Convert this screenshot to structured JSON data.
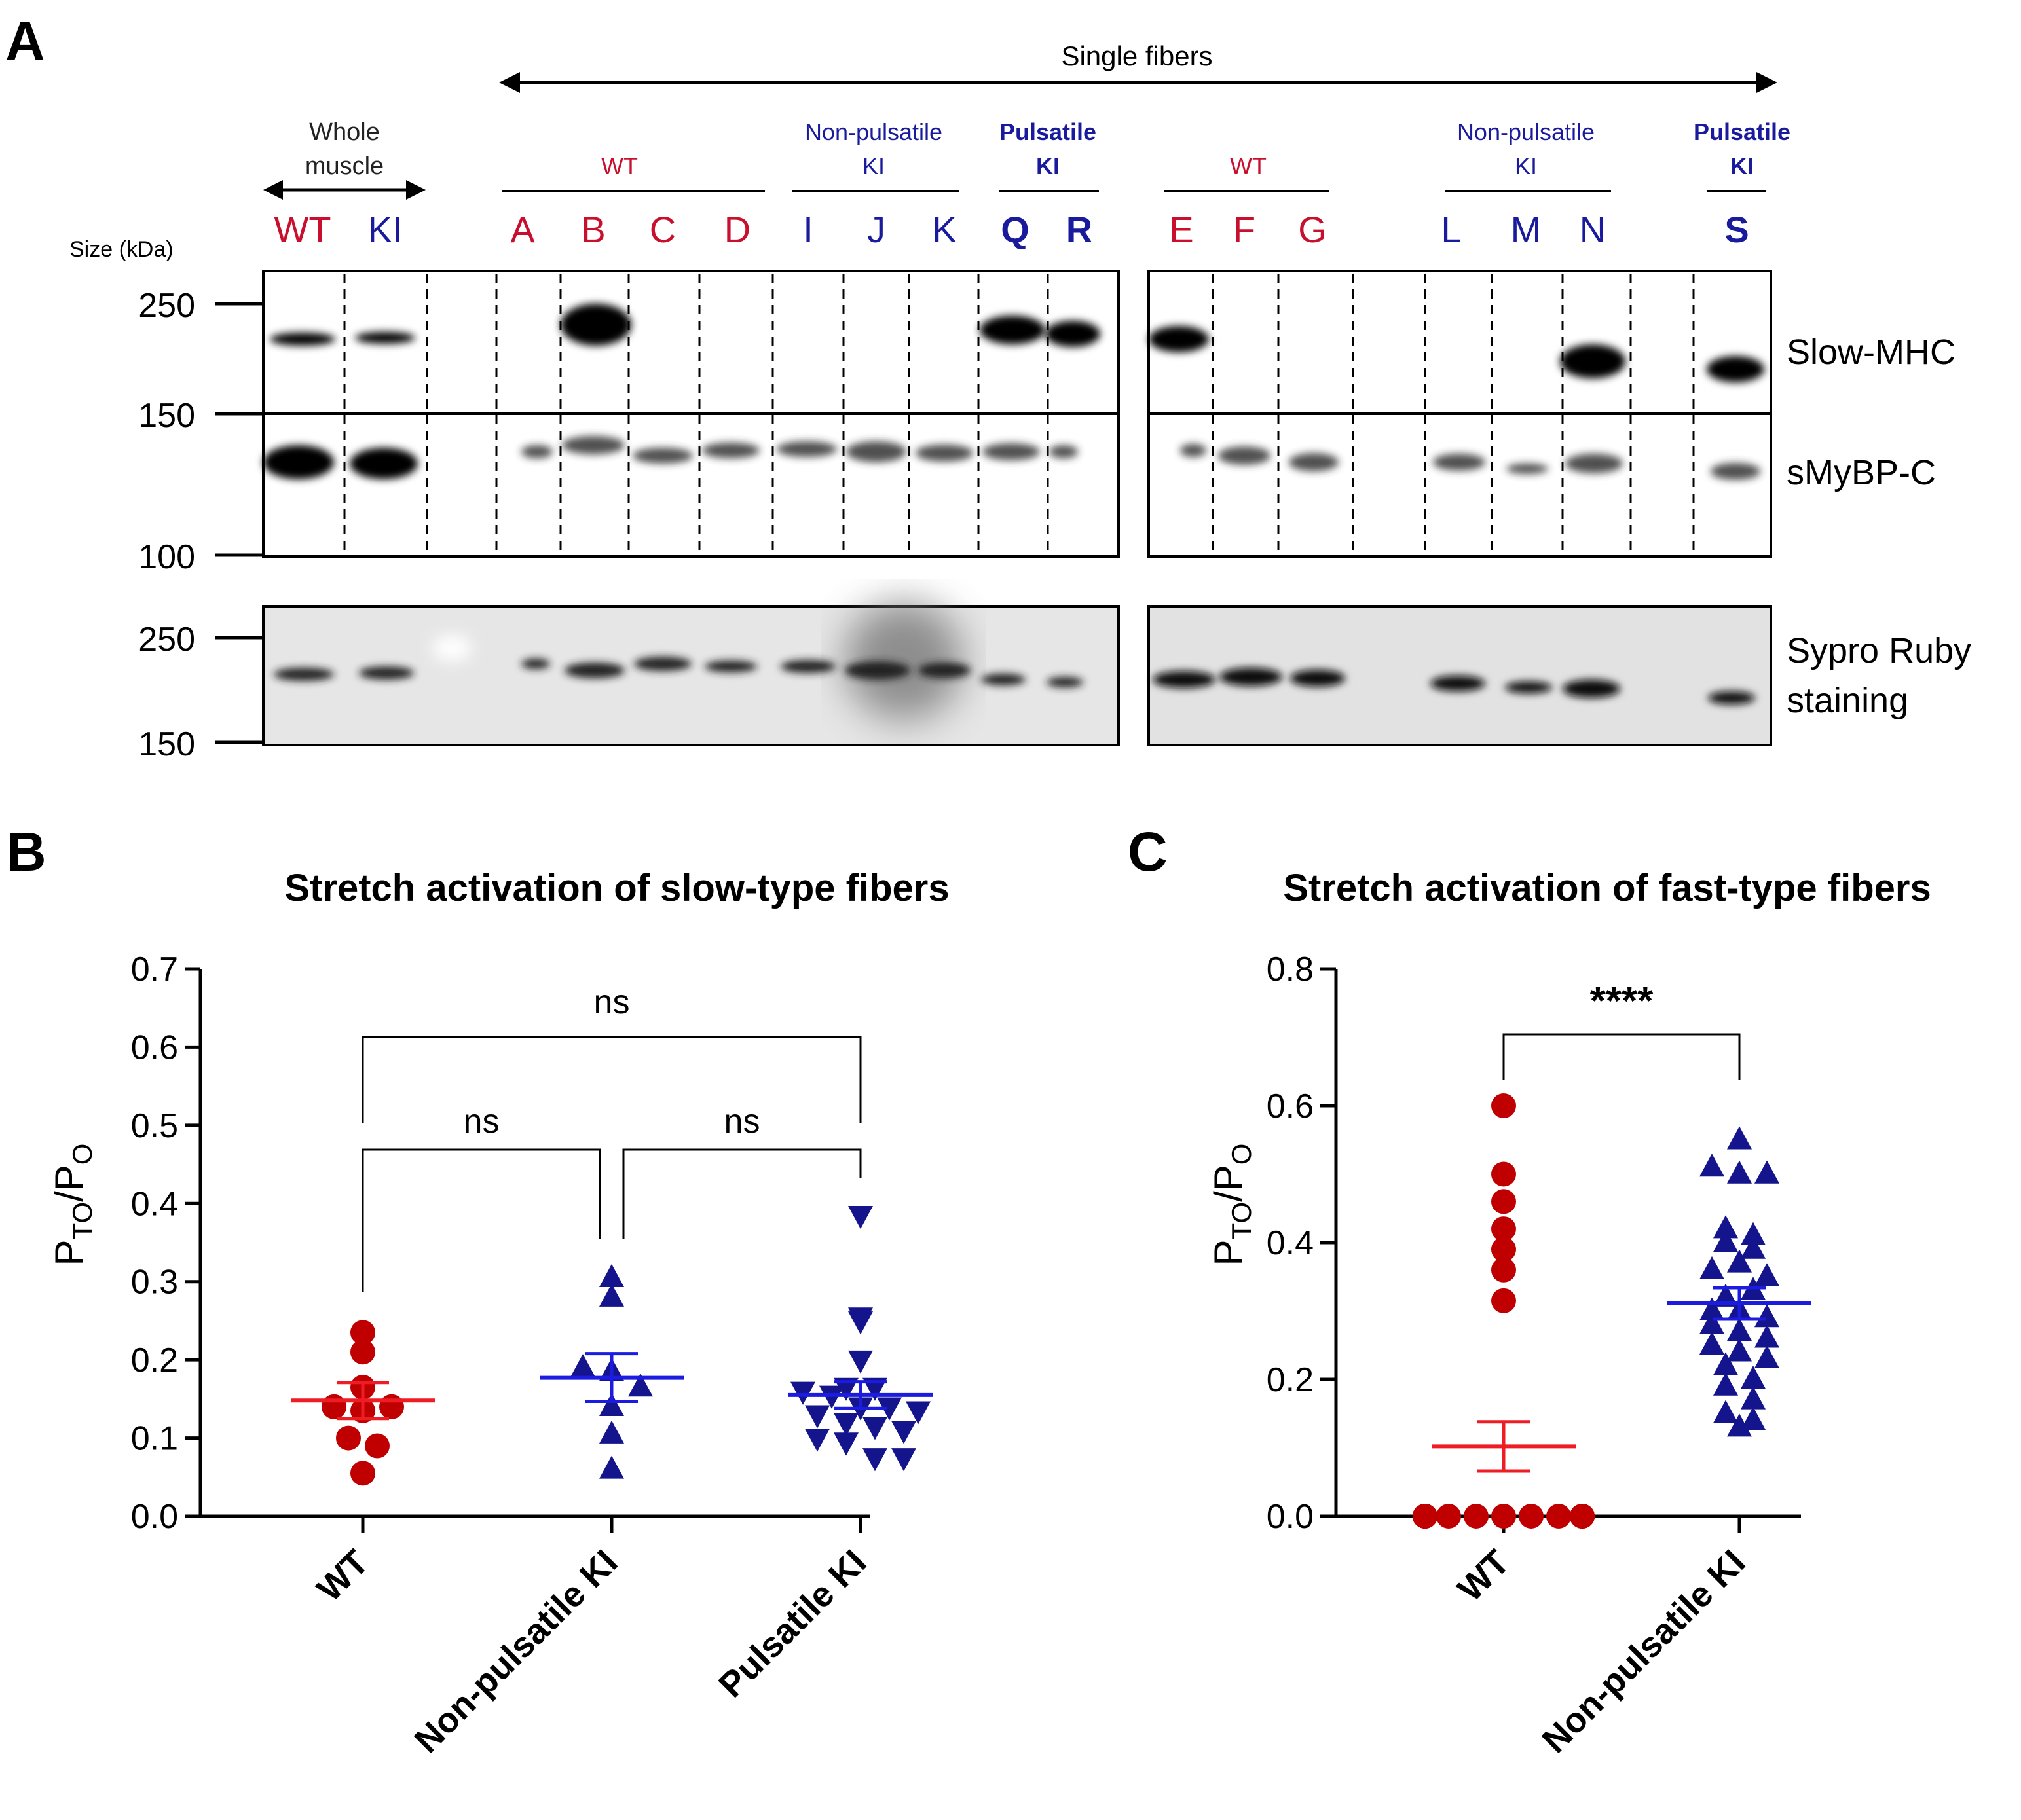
{
  "panel_letters": {
    "a": "A",
    "b": "B",
    "c": "C"
  },
  "colors": {
    "wt": "#c8102e",
    "ki": "#1a1a9c",
    "mean_wt": "#ee1c25",
    "mean_ki": "#1c1ce0",
    "marker_wt": "#c00000",
    "marker_ki": "#14148c"
  },
  "blot": {
    "single_fibers_label": "Single fibers",
    "whole_muscle_label_1": "Whole",
    "whole_muscle_label_2": "muscle",
    "size_label": "Size (kDa)",
    "group_left_wt": "WT",
    "group_left_np_1": "Non-pulsatile",
    "group_left_np_2": "KI",
    "group_left_p_1": "Pulsatile",
    "group_left_p_2": "KI",
    "group_right_wt": "WT",
    "group_right_np_1": "Non-pulsatile",
    "group_right_np_2": "KI",
    "group_right_p_1": "Pulsatile",
    "group_right_p_2": "KI",
    "lanes_left": [
      {
        "label": "WT",
        "color": "red",
        "bold": false
      },
      {
        "label": "KI",
        "color": "blue",
        "bold": false
      },
      {
        "label": "A",
        "color": "red",
        "bold": false
      },
      {
        "label": "B",
        "color": "red",
        "bold": false
      },
      {
        "label": "C",
        "color": "red",
        "bold": false
      },
      {
        "label": "D",
        "color": "red",
        "bold": false
      },
      {
        "label": "I",
        "color": "blue",
        "bold": false
      },
      {
        "label": "J",
        "color": "blue",
        "bold": false
      },
      {
        "label": "K",
        "color": "blue",
        "bold": false
      },
      {
        "label": "Q",
        "color": "blue",
        "bold": true
      },
      {
        "label": "R",
        "color": "blue",
        "bold": true
      }
    ],
    "lanes_right": [
      {
        "label": "E",
        "color": "red",
        "bold": false
      },
      {
        "label": "F",
        "color": "red",
        "bold": false
      },
      {
        "label": "G",
        "color": "red",
        "bold": false
      },
      {
        "label": "L",
        "color": "blue",
        "bold": false
      },
      {
        "label": "M",
        "color": "blue",
        "bold": false
      },
      {
        "label": "N",
        "color": "blue",
        "bold": false
      },
      {
        "label": "S",
        "color": "blue",
        "bold": true
      }
    ],
    "markers_top": [
      "250",
      "150",
      "100"
    ],
    "markers_bottom": [
      "250",
      "150"
    ],
    "band_labels": {
      "slow_mhc": "Slow-MHC",
      "smybpc": "sMyBP-C",
      "sypro_1": "Sypro Ruby",
      "sypro_2": "staining"
    }
  },
  "chart_data": [
    {
      "type": "scatter",
      "panel": "B",
      "title": "Stretch activation of slow-type fibers",
      "ylabel_main": "P",
      "ylabel_sub1": "TO",
      "ylabel_mid": "/P",
      "ylabel_sub2": "O",
      "ylim": [
        0,
        0.7
      ],
      "yticks": [
        "0.0",
        "0.1",
        "0.2",
        "0.3",
        "0.4",
        "0.5",
        "0.6",
        "0.7"
      ],
      "categories": [
        "WT",
        "Non-pulsatile KI",
        "Pulsatile KI"
      ],
      "comparisons": [
        {
          "label": "ns",
          "groups": [
            "WT",
            "Non-pulsatile KI"
          ]
        },
        {
          "label": "ns",
          "groups": [
            "Non-pulsatile KI",
            "Pulsatile KI"
          ]
        },
        {
          "label": "ns",
          "groups": [
            "WT",
            "Pulsatile KI"
          ]
        }
      ],
      "series": [
        {
          "name": "WT",
          "marker": "circle",
          "values": [
            0.21,
            0.235,
            0.165,
            0.14,
            0.135,
            0.14,
            0.1,
            0.09,
            0.055
          ],
          "mean": 0.148,
          "sem_low": 0.125,
          "sem_high": 0.171
        },
        {
          "name": "Non-pulsatile KI",
          "marker": "triangle-up",
          "values": [
            0.305,
            0.28,
            0.19,
            0.185,
            0.165,
            0.14,
            0.105,
            0.06
          ],
          "mean": 0.177,
          "sem_low": 0.147,
          "sem_high": 0.208
        },
        {
          "name": "Pulsatile KI",
          "marker": "triangle-down",
          "values": [
            0.385,
            0.255,
            0.25,
            0.2,
            0.165,
            0.165,
            0.16,
            0.155,
            0.14,
            0.14,
            0.135,
            0.13,
            0.12,
            0.115,
            0.11,
            0.1,
            0.095,
            0.075,
            0.075
          ],
          "mean": 0.155,
          "sem_low": 0.138,
          "sem_high": 0.172
        }
      ]
    },
    {
      "type": "scatter",
      "panel": "C",
      "title": "Stretch activation of fast-type fibers",
      "ylabel_main": "P",
      "ylabel_sub1": "TO",
      "ylabel_mid": "/P",
      "ylabel_sub2": "O",
      "ylim": [
        0,
        0.8
      ],
      "yticks": [
        "0.0",
        "0.2",
        "0.4",
        "0.6",
        "0.8"
      ],
      "categories": [
        "WT",
        "Non-pulsatile KI"
      ],
      "comparisons": [
        {
          "label": "****",
          "groups": [
            "WT",
            "Non-pulsatile KI"
          ]
        }
      ],
      "series": [
        {
          "name": "WT",
          "marker": "circle",
          "values": [
            0.6,
            0.5,
            0.46,
            0.42,
            0.39,
            0.36,
            0.315,
            0,
            0,
            0,
            0,
            0,
            0,
            0,
            0,
            0,
            0,
            0,
            0,
            0,
            0,
            0,
            0,
            0,
            0,
            0,
            0,
            0,
            0,
            0,
            0,
            0
          ],
          "mean": 0.102,
          "sem_low": 0.066,
          "sem_high": 0.138
        },
        {
          "name": "Non-pulsatile KI",
          "marker": "triangle-up",
          "values": [
            0.55,
            0.51,
            0.5,
            0.5,
            0.42,
            0.41,
            0.4,
            0.39,
            0.36,
            0.37,
            0.35,
            0.32,
            0.33,
            0.3,
            0.3,
            0.29,
            0.28,
            0.27,
            0.26,
            0.25,
            0.24,
            0.23,
            0.22,
            0.2,
            0.19,
            0.17,
            0.15,
            0.14,
            0.13
          ],
          "mean": 0.311,
          "sem_low": 0.288,
          "sem_high": 0.334
        }
      ]
    }
  ]
}
